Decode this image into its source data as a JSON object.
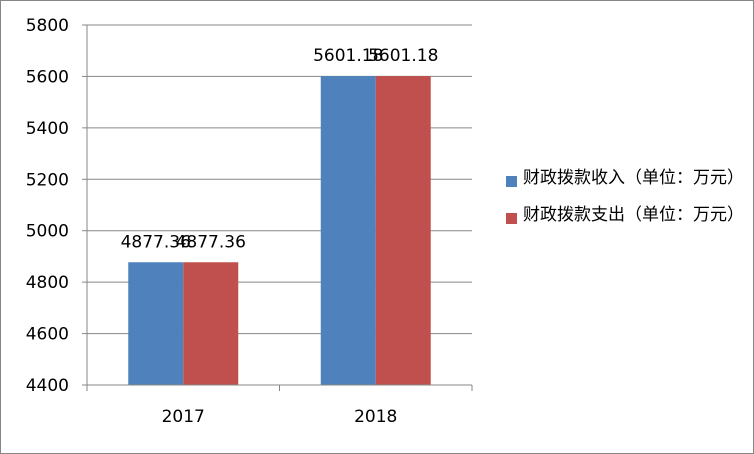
{
  "chart_data": {
    "type": "bar",
    "title": "",
    "xlabel": "",
    "ylabel": "",
    "categories": [
      "2017",
      "2018"
    ],
    "series": [
      {
        "name": "财政拨款收入（单位：万元）",
        "values": [
          4877.36,
          5601.18
        ],
        "value_labels": [
          "4877.36",
          "5601.18"
        ],
        "color": "#4F81BD"
      },
      {
        "name": "财政拨款支出（单位：万元）",
        "values": [
          4877.36,
          5601.18
        ],
        "value_labels": [
          "4877.36",
          "5601.18"
        ],
        "color": "#C0504D"
      }
    ],
    "ylim": [
      4400,
      5800
    ],
    "yticks": [
      "4400",
      "4600",
      "4800",
      "5000",
      "5200",
      "5400",
      "5600",
      "5800"
    ],
    "grid": true,
    "legend_position": "right"
  }
}
